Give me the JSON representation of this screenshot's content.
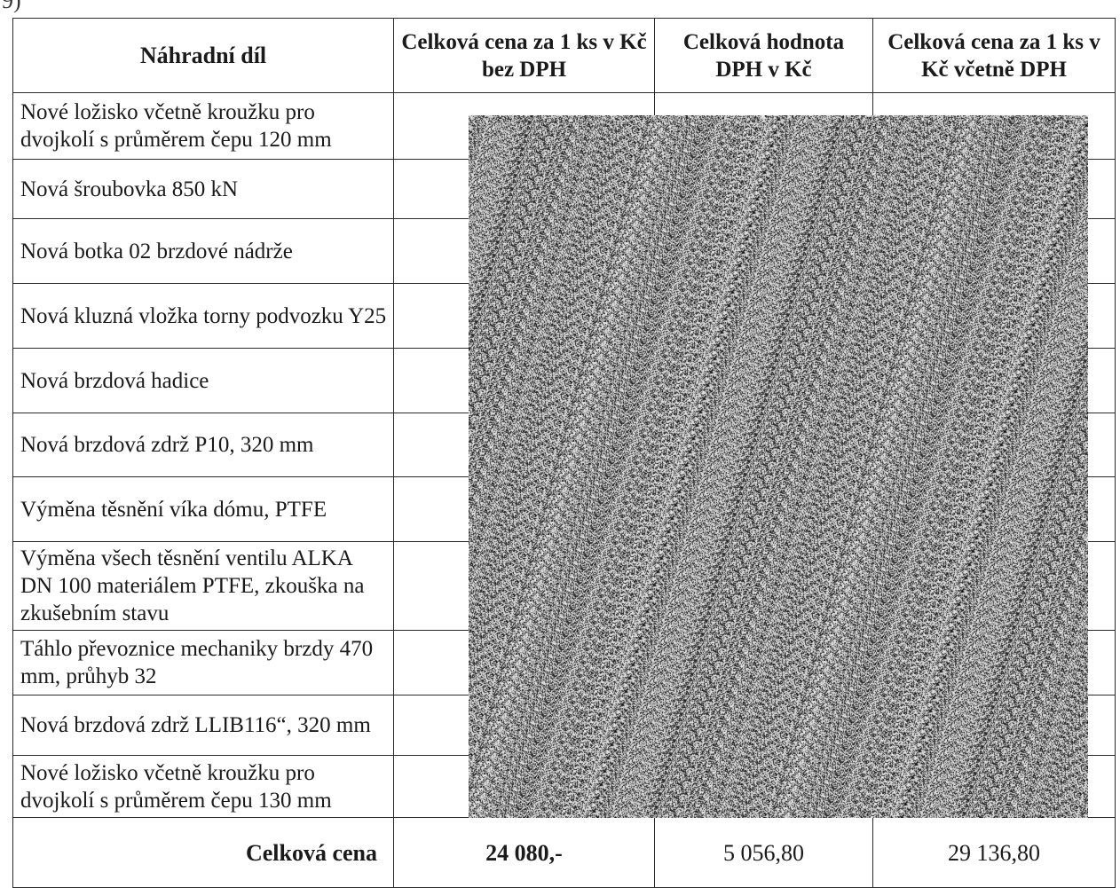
{
  "table": {
    "headers": [
      "Náhradní díl",
      "Celková cena za 1 ks v Kč bez DPH",
      "Celková hodnota DPH v Kč",
      "Celková cena za 1 ks v Kč včetně DPH"
    ],
    "rows": [
      {
        "part": "Nové ložisko včetně kroužku pro dvojkolí s průměrem čepu 120 mm"
      },
      {
        "part": "Nová šroubovka 850 kN"
      },
      {
        "part": "Nová botka 02 brzdové nádrže"
      },
      {
        "part": "Nová kluzná vložka torny podvozku Y25"
      },
      {
        "part": "Nová brzdová hadice"
      },
      {
        "part": "Nová brzdová zdrž P10, 320 mm"
      },
      {
        "part": "Výměna těsnění víka dómu, PTFE"
      },
      {
        "part": "Výměna všech těsnění ventilu ALKA DN 100 materiálem PTFE, zkouška na zkušebním stavu"
      },
      {
        "part": "Táhlo převoznice mechaniky brzdy 470 mm, průhyb 32"
      },
      {
        "part": "Nová brzdová zdrž LLIB116“, 320 mm"
      },
      {
        "part": "Nové ložisko včetně kroužku pro dvojkolí s průměrem čepu 130 mm"
      }
    ],
    "total": {
      "label": "Celková cena",
      "price_without_vat": "24 080,-",
      "vat": "5 056,80",
      "price_with_vat": "29 136,80"
    }
  }
}
